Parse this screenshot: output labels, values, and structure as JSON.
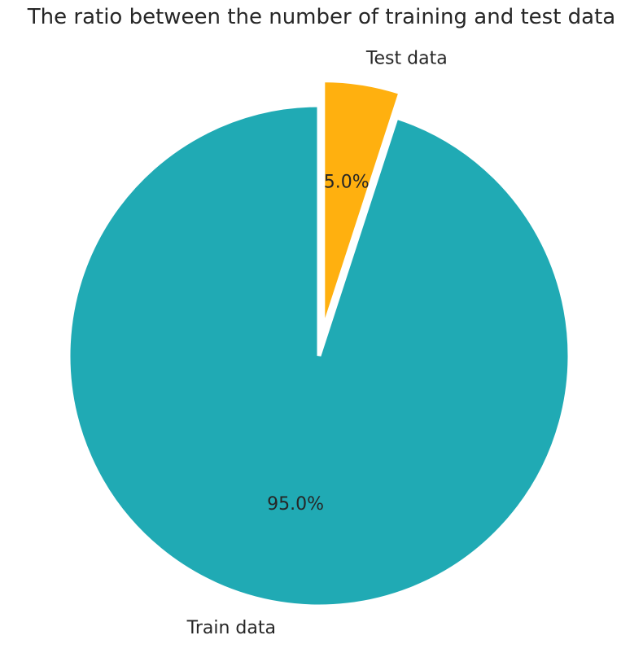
{
  "chart_data": {
    "type": "pie",
    "title": "The ratio between the number of training and test data",
    "slices": [
      {
        "label": "Test data",
        "value": 5.0,
        "pct_label": "5.0%",
        "color": "#FFB00F",
        "explode": 0.1
      },
      {
        "label": "Train data",
        "value": 95.0,
        "pct_label": "95.0%",
        "color": "#20AAB4",
        "explode": 0.0
      }
    ],
    "start_angle": 90,
    "direction": "clockwise",
    "legend": "none"
  }
}
